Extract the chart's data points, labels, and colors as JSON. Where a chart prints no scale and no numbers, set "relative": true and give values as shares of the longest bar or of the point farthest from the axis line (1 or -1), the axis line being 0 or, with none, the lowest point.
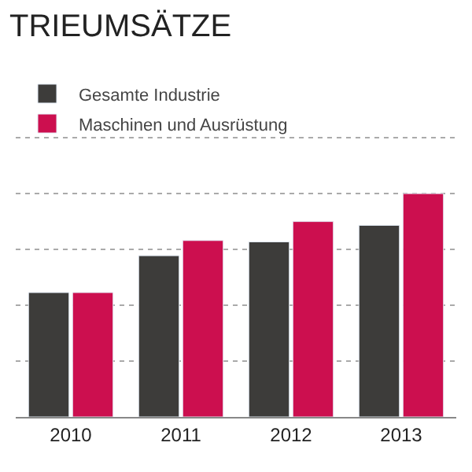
{
  "chart_data": {
    "type": "bar",
    "title": "TRIEUMSÄTZE",
    "relative": true,
    "categories": [
      "2010",
      "2011",
      "2012",
      "2013"
    ],
    "series": [
      {
        "name": "Gesamte Industrie",
        "color": "#3d3c3a",
        "values": [
          0.557,
          0.722,
          0.784,
          0.858
        ]
      },
      {
        "name": "Maschinen und Ausrüstung",
        "color": "#cc0f4f",
        "values": [
          0.557,
          0.79,
          0.875,
          1.0
        ]
      }
    ],
    "grid": "y",
    "legend": "top left"
  }
}
